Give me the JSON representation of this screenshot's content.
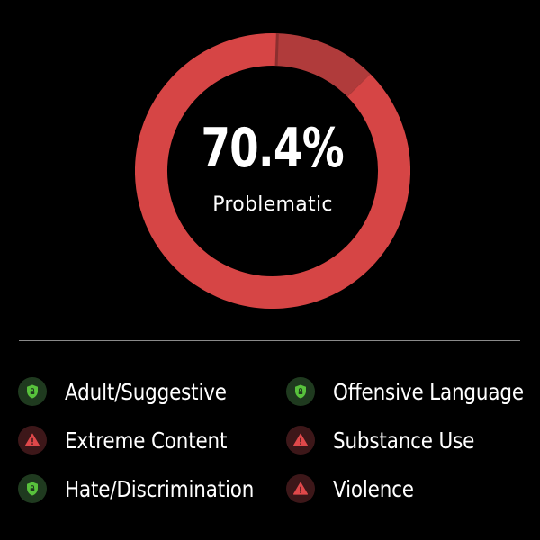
{
  "summary": {
    "percent_text": "70.4%",
    "label": "Problematic"
  },
  "colors": {
    "primary_segment": "#d64545",
    "secondary_segment": "#b03b3b",
    "safe_badge_bg": "#1f3a1f",
    "safe_icon": "#58c23c",
    "flagged_badge_bg": "#3d1719",
    "flagged_icon": "#e0484a"
  },
  "chart_data": {
    "type": "pie",
    "values": [
      88,
      12
    ],
    "center_text": "70.4%",
    "center_label": "Problematic"
  },
  "legend": {
    "items": [
      {
        "label": "Adult/Suggestive",
        "status": "safe",
        "icon": "shield-lock-icon"
      },
      {
        "label": "Offensive Language",
        "status": "safe",
        "icon": "shield-lock-icon"
      },
      {
        "label": "Extreme Content",
        "status": "flagged",
        "icon": "warning-triangle-icon"
      },
      {
        "label": "Substance Use",
        "status": "flagged",
        "icon": "warning-triangle-icon"
      },
      {
        "label": "Hate/Discrimination",
        "status": "safe",
        "icon": "shield-lock-icon"
      },
      {
        "label": "Violence",
        "status": "flagged",
        "icon": "warning-triangle-icon"
      }
    ]
  }
}
